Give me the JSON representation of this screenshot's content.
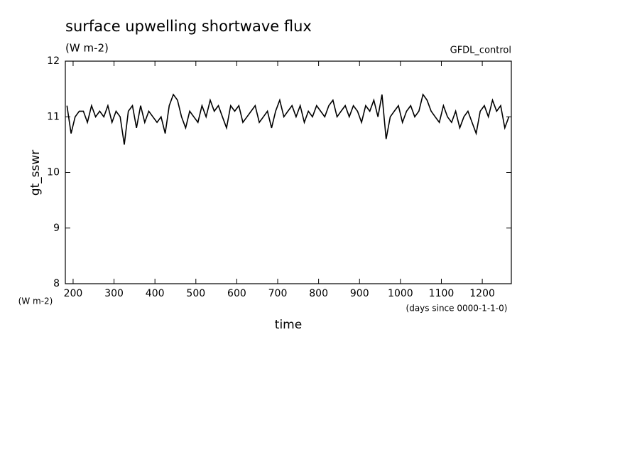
{
  "chart_data": {
    "type": "line",
    "title": "surface upwelling shortwave flux",
    "subtitle": "(W m-2)",
    "dataset": "GFDL_control",
    "y_label": "gt_sswr",
    "y_units": "(W m-2)",
    "x_label": "time",
    "x_units": "(days since 0000-1-1-0)",
    "x": [
      185,
      195,
      205,
      215,
      225,
      235,
      245,
      255,
      265,
      275,
      285,
      295,
      305,
      315,
      325,
      335,
      345,
      355,
      365,
      375,
      385,
      395,
      405,
      415,
      425,
      435,
      445,
      455,
      465,
      475,
      485,
      495,
      505,
      515,
      525,
      535,
      545,
      555,
      565,
      575,
      585,
      595,
      605,
      615,
      625,
      635,
      645,
      655,
      665,
      675,
      685,
      695,
      705,
      715,
      725,
      735,
      745,
      755,
      765,
      775,
      785,
      795,
      805,
      815,
      825,
      835,
      845,
      855,
      865,
      875,
      885,
      895,
      905,
      915,
      925,
      935,
      945,
      955,
      965,
      975,
      985,
      995,
      1005,
      1015,
      1025,
      1035,
      1045,
      1055,
      1065,
      1075,
      1085,
      1095,
      1105,
      1115,
      1125,
      1135,
      1145,
      1155,
      1165,
      1175,
      1185,
      1195,
      1205,
      1215,
      1225,
      1235,
      1245,
      1255,
      1265
    ],
    "series": [
      {
        "name": "gt_sswr",
        "color": "#000000",
        "values": [
          11.2,
          10.7,
          11.0,
          11.1,
          11.1,
          10.9,
          11.2,
          11.0,
          11.1,
          11.0,
          11.2,
          10.9,
          11.1,
          11.0,
          10.5,
          11.1,
          11.2,
          10.8,
          11.2,
          10.9,
          11.1,
          11.0,
          10.9,
          11.0,
          10.7,
          11.2,
          11.4,
          11.3,
          11.0,
          10.8,
          11.1,
          11.0,
          10.9,
          11.2,
          11.0,
          11.3,
          11.1,
          11.2,
          11.0,
          10.8,
          11.2,
          11.1,
          11.2,
          10.9,
          11.0,
          11.1,
          11.2,
          10.9,
          11.0,
          11.1,
          10.8,
          11.1,
          11.3,
          11.0,
          11.1,
          11.2,
          11.0,
          11.2,
          10.9,
          11.1,
          11.0,
          11.2,
          11.1,
          11.0,
          11.2,
          11.3,
          11.0,
          11.1,
          11.2,
          11.0,
          11.2,
          11.1,
          10.9,
          11.2,
          11.1,
          11.3,
          11.0,
          11.4,
          10.6,
          11.0,
          11.1,
          11.2,
          10.9,
          11.1,
          11.2,
          11.0,
          11.1,
          11.4,
          11.3,
          11.1,
          11.0,
          10.9,
          11.2,
          11.0,
          10.9,
          11.1,
          10.8,
          11.0,
          11.1,
          10.9,
          10.7,
          11.1,
          11.2,
          11.0,
          11.3,
          11.1,
          11.2,
          10.8,
          11.0
        ]
      }
    ],
    "xlim": [
      181,
      1271
    ],
    "ylim": [
      8,
      12
    ],
    "xticks": [
      200,
      300,
      400,
      500,
      600,
      700,
      800,
      900,
      1000,
      1100,
      1200
    ],
    "yticks": [
      8,
      9,
      10,
      11,
      12
    ]
  }
}
